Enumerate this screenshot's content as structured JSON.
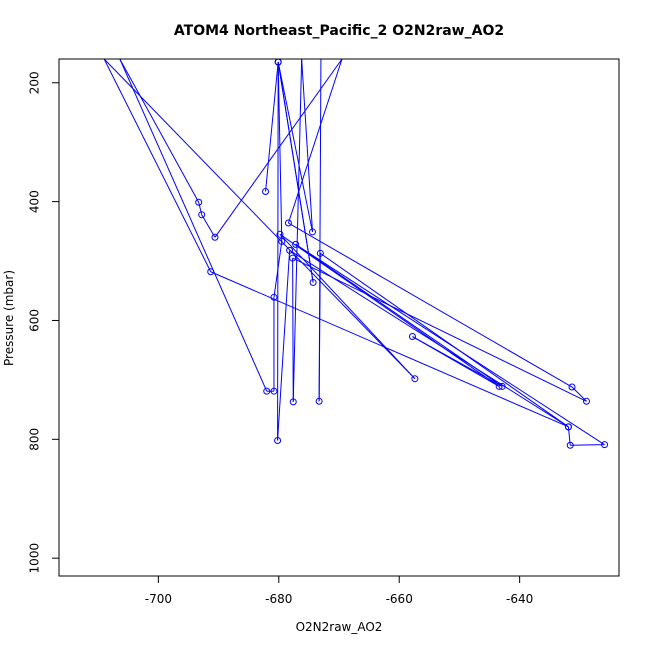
{
  "chart_data": {
    "type": "line",
    "title": "ATOM4 Northeast_Pacific_2 O2N2raw_AO2",
    "xlabel": "O2N2raw_AO2",
    "ylabel": "Pressure (mbar)",
    "xlim": [
      -716.5,
      -623.5
    ],
    "ylim": [
      1030,
      160
    ],
    "y_reversed": true,
    "x_ticks": [
      -700,
      -680,
      -660,
      -640
    ],
    "y_ticks": [
      200,
      400,
      600,
      800,
      1000
    ],
    "color": "#0000ff",
    "series": [
      {
        "markers": "circle",
        "points": [
          [
            -682.2,
            383
          ],
          [
            -680.1,
            165
          ],
          [
            -674.3,
            536
          ],
          [
            -680.1,
            165
          ],
          [
            -679.5,
            467
          ],
          [
            -680.8,
            561
          ],
          [
            -680.8,
            719
          ],
          [
            -682,
            719
          ],
          [
            -706.4,
            160
          ],
          [
            -693.3,
            401
          ],
          [
            -692.8,
            422
          ],
          [
            -690.6,
            460
          ],
          [
            -669.5,
            160
          ],
          [
            -678.4,
            436
          ],
          [
            -631.3,
            712
          ],
          [
            -628.9,
            736
          ],
          [
            -677.7,
            495
          ],
          [
            -677.6,
            737
          ],
          [
            -676.2,
            160
          ],
          [
            -674.4,
            451
          ],
          [
            -680.1,
            165
          ],
          [
            -680.2,
            802
          ],
          [
            -678.2,
            482
          ],
          [
            -631.9,
            779
          ],
          [
            -631.6,
            810
          ],
          [
            -625.9,
            809
          ],
          [
            -677.2,
            472
          ],
          [
            -642.9,
            711
          ],
          [
            -657.8,
            627
          ],
          [
            -643.4,
            711
          ],
          [
            -679.8,
            455
          ],
          [
            -657.4,
            698
          ],
          [
            -709,
            160
          ],
          [
            -691.3,
            518
          ],
          [
            -631.9,
            779
          ],
          [
            -673.1,
            487
          ],
          [
            -673.3,
            736
          ],
          [
            -673,
            160
          ]
        ]
      }
    ]
  }
}
